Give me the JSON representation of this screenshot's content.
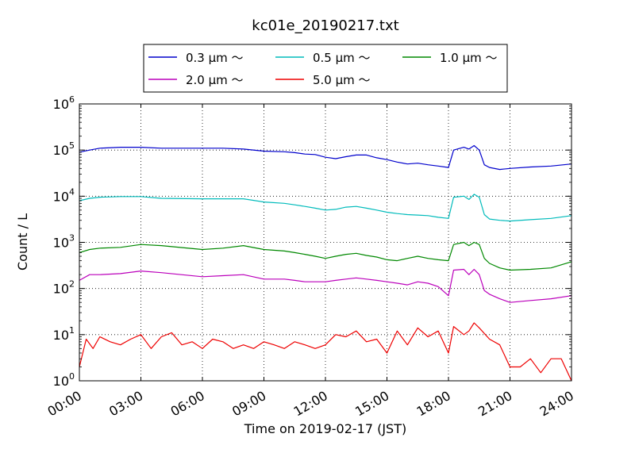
{
  "chart_data": {
    "type": "line",
    "title": "kc01e_20190217.txt",
    "xlabel": "Time on 2019-02-17 (JST)",
    "ylabel": "Count / L",
    "yscale": "log",
    "xlim": [
      "00:00",
      "24:00"
    ],
    "ylim": [
      1,
      1000000
    ],
    "x_ticks": [
      "00:00",
      "03:00",
      "06:00",
      "09:00",
      "12:00",
      "15:00",
      "18:00",
      "21:00",
      "24:00"
    ],
    "y_ticks": [
      {
        "base": "10",
        "exp": "0",
        "value": 1
      },
      {
        "base": "10",
        "exp": "1",
        "value": 10
      },
      {
        "base": "10",
        "exp": "2",
        "value": 100
      },
      {
        "base": "10",
        "exp": "3",
        "value": 1000
      },
      {
        "base": "10",
        "exp": "4",
        "value": 10000
      },
      {
        "base": "10",
        "exp": "5",
        "value": 100000
      },
      {
        "base": "10",
        "exp": "6",
        "value": 1000000
      }
    ],
    "grid": true,
    "legend_position": "top-center",
    "series": [
      {
        "name": "0.3 μm ～",
        "color": "#0000cc",
        "x": [
          "00:00",
          "00:30",
          "01:00",
          "02:00",
          "03:00",
          "04:00",
          "06:00",
          "07:00",
          "08:00",
          "09:00",
          "10:00",
          "10:30",
          "11:00",
          "11:30",
          "12:00",
          "12:30",
          "13:00",
          "13:30",
          "14:00",
          "14:30",
          "15:00",
          "15:30",
          "16:00",
          "16:30",
          "17:00",
          "17:30",
          "18:00",
          "18:15",
          "18:45",
          "19:00",
          "19:15",
          "19:30",
          "19:45",
          "20:00",
          "20:30",
          "21:00",
          "22:00",
          "23:00",
          "24:00"
        ],
        "y": [
          90000,
          100000,
          110000,
          115000,
          115000,
          110000,
          110000,
          110000,
          105000,
          95000,
          92000,
          88000,
          82000,
          80000,
          70000,
          65000,
          72000,
          78000,
          78000,
          68000,
          62000,
          55000,
          50000,
          52000,
          48000,
          45000,
          42000,
          100000,
          115000,
          105000,
          125000,
          100000,
          48000,
          42000,
          38000,
          40000,
          43000,
          45000,
          50000
        ]
      },
      {
        "name": "0.5 μm ～",
        "color": "#00bbbb",
        "x": [
          "00:00",
          "00:30",
          "01:00",
          "02:00",
          "03:00",
          "04:00",
          "06:00",
          "07:00",
          "08:00",
          "09:00",
          "10:00",
          "10:30",
          "11:00",
          "11:30",
          "12:00",
          "12:30",
          "13:00",
          "13:30",
          "14:00",
          "14:30",
          "15:00",
          "15:30",
          "16:00",
          "16:30",
          "17:00",
          "17:30",
          "18:00",
          "18:15",
          "18:45",
          "19:00",
          "19:15",
          "19:30",
          "19:45",
          "20:00",
          "20:30",
          "21:00",
          "22:00",
          "23:00",
          "24:00"
        ],
        "y": [
          8000,
          9000,
          9500,
          9800,
          9800,
          9000,
          8800,
          8800,
          8800,
          7500,
          7000,
          6500,
          6000,
          5500,
          5000,
          5200,
          5800,
          6000,
          5500,
          5000,
          4500,
          4200,
          4000,
          3900,
          3800,
          3500,
          3300,
          9500,
          10000,
          8500,
          11000,
          9500,
          4000,
          3200,
          3000,
          2900,
          3100,
          3300,
          3800
        ]
      },
      {
        "name": "1.0 μm ～",
        "color": "#008800",
        "x": [
          "00:00",
          "00:30",
          "01:00",
          "02:00",
          "03:00",
          "04:00",
          "06:00",
          "07:00",
          "08:00",
          "09:00",
          "10:00",
          "10:30",
          "11:00",
          "11:30",
          "12:00",
          "12:30",
          "13:00",
          "13:30",
          "14:00",
          "14:30",
          "15:00",
          "15:30",
          "16:00",
          "16:30",
          "17:00",
          "17:30",
          "18:00",
          "18:15",
          "18:45",
          "19:00",
          "19:15",
          "19:30",
          "19:45",
          "20:00",
          "20:30",
          "21:00",
          "22:00",
          "23:00",
          "24:00"
        ],
        "y": [
          600,
          700,
          750,
          780,
          900,
          850,
          700,
          750,
          850,
          700,
          650,
          600,
          550,
          500,
          450,
          500,
          550,
          580,
          520,
          480,
          420,
          400,
          450,
          500,
          450,
          420,
          400,
          900,
          1000,
          850,
          1000,
          900,
          450,
          350,
          280,
          250,
          260,
          280,
          380
        ]
      },
      {
        "name": "2.0 μm ～",
        "color": "#bb00bb",
        "x": [
          "00:00",
          "00:30",
          "01:00",
          "02:00",
          "03:00",
          "04:00",
          "06:00",
          "07:00",
          "08:00",
          "09:00",
          "10:00",
          "10:30",
          "11:00",
          "11:30",
          "12:00",
          "12:30",
          "13:00",
          "13:30",
          "14:00",
          "14:30",
          "15:00",
          "15:30",
          "16:00",
          "16:30",
          "17:00",
          "17:30",
          "18:00",
          "18:15",
          "18:45",
          "19:00",
          "19:15",
          "19:30",
          "19:45",
          "20:00",
          "20:30",
          "21:00",
          "22:00",
          "23:00",
          "24:00"
        ],
        "y": [
          150,
          200,
          200,
          210,
          240,
          220,
          180,
          190,
          200,
          160,
          160,
          150,
          140,
          140,
          140,
          150,
          160,
          170,
          160,
          150,
          140,
          130,
          120,
          140,
          130,
          110,
          70,
          250,
          260,
          200,
          260,
          200,
          90,
          75,
          60,
          50,
          55,
          60,
          70
        ]
      },
      {
        "name": "5.0 μm ～",
        "color": "#ee0000",
        "x": [
          "00:00",
          "00:20",
          "00:40",
          "01:00",
          "01:30",
          "02:00",
          "02:30",
          "03:00",
          "03:30",
          "04:00",
          "04:30",
          "05:00",
          "05:30",
          "06:00",
          "06:30",
          "07:00",
          "07:30",
          "08:00",
          "08:30",
          "09:00",
          "09:30",
          "10:00",
          "10:30",
          "11:00",
          "11:30",
          "12:00",
          "12:30",
          "13:00",
          "13:30",
          "14:00",
          "14:30",
          "15:00",
          "15:30",
          "16:00",
          "16:30",
          "17:00",
          "17:30",
          "18:00",
          "18:15",
          "18:45",
          "19:00",
          "19:15",
          "19:30",
          "20:00",
          "20:30",
          "21:00",
          "21:30",
          "22:00",
          "22:30",
          "23:00",
          "23:30",
          "24:00"
        ],
        "y": [
          2,
          8,
          5,
          9,
          7,
          6,
          8,
          10,
          5,
          9,
          11,
          6,
          7,
          5,
          8,
          7,
          5,
          6,
          5,
          7,
          6,
          5,
          7,
          6,
          5,
          6,
          10,
          9,
          12,
          7,
          8,
          4,
          12,
          6,
          14,
          9,
          12,
          4,
          15,
          10,
          12,
          18,
          14,
          8,
          6,
          2,
          2,
          3,
          1.5,
          3,
          3,
          1
        ]
      }
    ]
  }
}
